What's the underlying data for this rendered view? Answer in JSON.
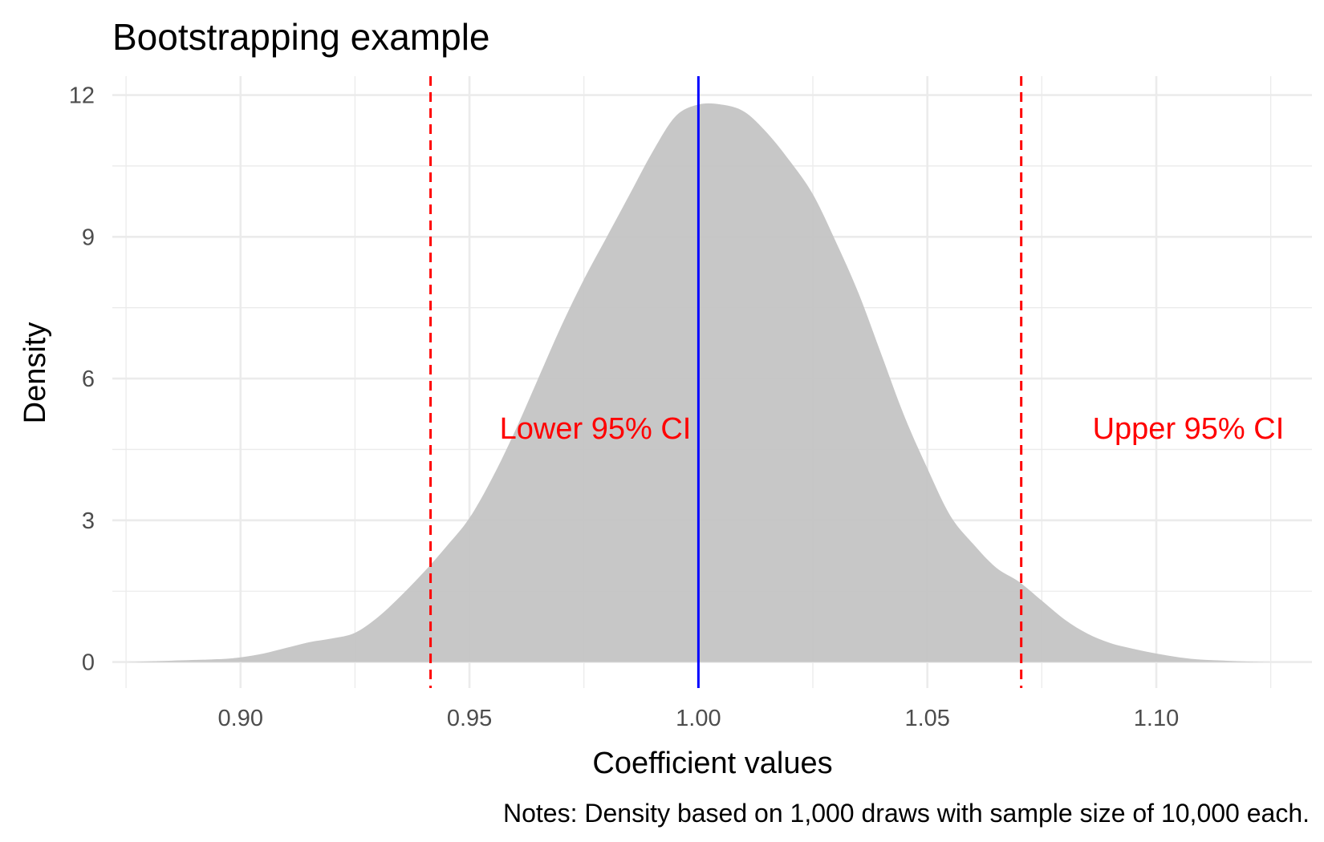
{
  "chart_data": {
    "type": "area",
    "title": "Bootstrapping example",
    "xlabel": "Coefficient values",
    "ylabel": "Density",
    "caption": "Notes: Density based on 1,000 draws with sample size of 10,000 each.",
    "xlim": [
      0.872,
      1.134
    ],
    "ylim": [
      -0.55,
      12.4
    ],
    "x_ticks": [
      0.9,
      0.95,
      1.0,
      1.05,
      1.1
    ],
    "x_tick_labels": [
      "0.90",
      "0.95",
      "1.00",
      "1.05",
      "1.10"
    ],
    "y_ticks": [
      0,
      3,
      6,
      9,
      12
    ],
    "y_tick_labels": [
      "0",
      "3",
      "6",
      "9",
      "12"
    ],
    "grid": true,
    "density": {
      "x": [
        0.875,
        0.885,
        0.895,
        0.9,
        0.905,
        0.91,
        0.915,
        0.92,
        0.925,
        0.93,
        0.935,
        0.94,
        0.945,
        0.95,
        0.955,
        0.96,
        0.965,
        0.97,
        0.975,
        0.98,
        0.985,
        0.99,
        0.995,
        1.0,
        1.005,
        1.01,
        1.015,
        1.02,
        1.025,
        1.03,
        1.035,
        1.04,
        1.045,
        1.05,
        1.055,
        1.06,
        1.065,
        1.07,
        1.075,
        1.08,
        1.085,
        1.09,
        1.095,
        1.1,
        1.105,
        1.11,
        1.115,
        1.12,
        1.125
      ],
      "y": [
        0.0,
        0.03,
        0.06,
        0.1,
        0.18,
        0.3,
        0.42,
        0.5,
        0.62,
        0.95,
        1.4,
        1.9,
        2.45,
        3.05,
        3.9,
        4.9,
        6.0,
        7.1,
        8.1,
        9.0,
        9.9,
        10.8,
        11.55,
        11.8,
        11.8,
        11.65,
        11.2,
        10.6,
        9.9,
        8.9,
        7.8,
        6.5,
        5.2,
        4.1,
        3.1,
        2.5,
        2.0,
        1.7,
        1.3,
        0.9,
        0.6,
        0.4,
        0.28,
        0.18,
        0.1,
        0.05,
        0.03,
        0.01,
        0.0
      ],
      "fill": "#c4c4c4"
    },
    "reference_lines": [
      {
        "x": 0.9415,
        "color": "#ff0000",
        "style": "dashed",
        "label": "Lower 95% CI"
      },
      {
        "x": 1.0,
        "color": "#0000ff",
        "style": "solid",
        "label": ""
      },
      {
        "x": 1.0705,
        "color": "#ff0000",
        "style": "dashed",
        "label": "Upper 95% CI"
      }
    ],
    "annotations": [
      {
        "text": "Lower 95% CI",
        "x": 0.9775,
        "y": 4.95,
        "color": "#ff0000"
      },
      {
        "text": "Upper 95% CI",
        "x": 1.107,
        "y": 4.95,
        "color": "#ff0000"
      }
    ]
  }
}
